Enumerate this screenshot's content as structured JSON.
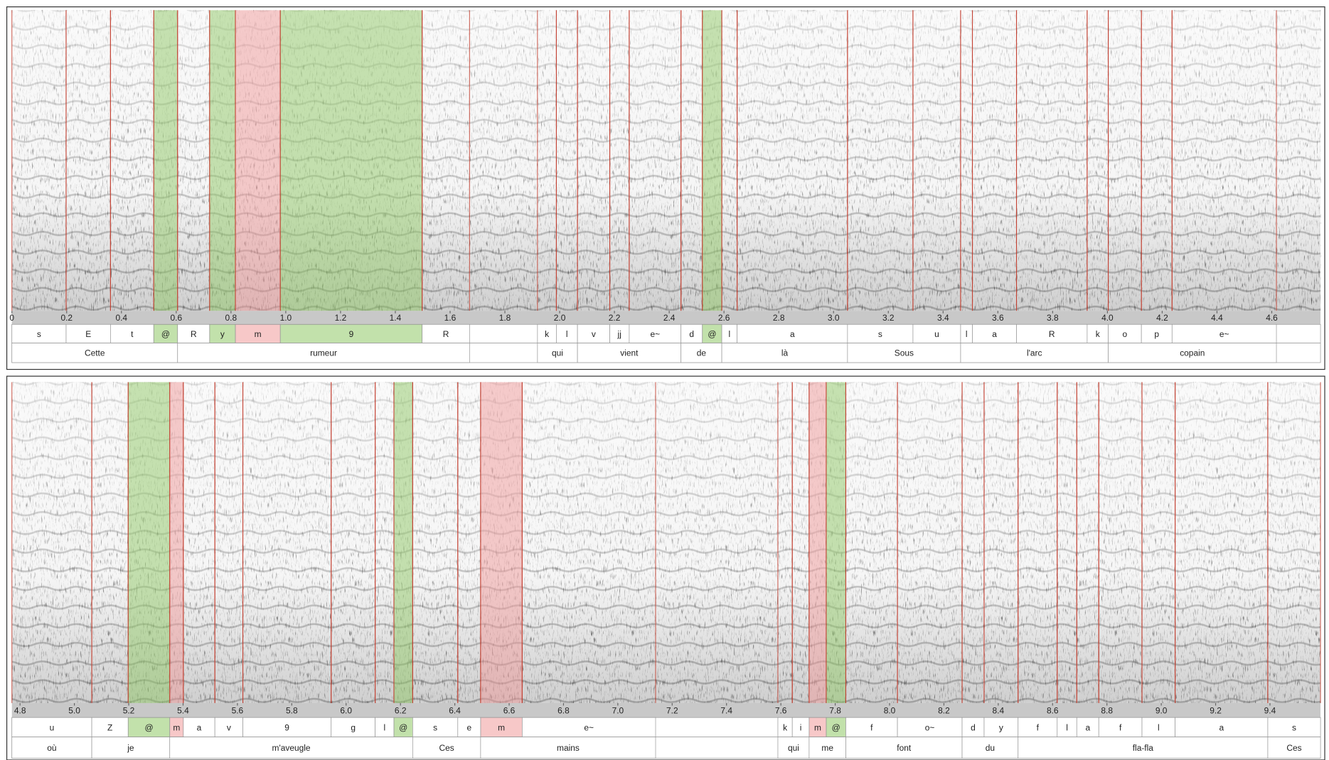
{
  "chart_data": [
    {
      "type": "spectrogram",
      "xlim": [
        0,
        4.778
      ],
      "xticks": [
        0,
        0.2,
        0.4,
        0.6,
        0.8,
        {
          "value": 1,
          "label": "1.0"
        },
        1.2,
        1.4,
        1.6,
        1.8,
        {
          "value": 2,
          "label": "2.0"
        },
        2.2,
        2.4,
        2.6,
        2.8,
        {
          "value": 3,
          "label": "3.0"
        },
        3.2,
        3.4,
        3.6,
        3.8,
        {
          "value": 4,
          "label": "4.0"
        },
        4.2,
        4.4,
        4.6
      ],
      "tiers": [
        {
          "intervals": [
            {
              "label": "s",
              "start": 0,
              "end": 0.198
            },
            {
              "label": "E",
              "start": 0.198,
              "end": 0.36
            },
            {
              "label": "t",
              "start": 0.36,
              "end": 0.518
            },
            {
              "label": "@",
              "start": 0.518,
              "end": 0.605,
              "color": "#8fc866"
            },
            {
              "label": "R",
              "start": 0.605,
              "end": 0.722
            },
            {
              "label": "y",
              "start": 0.722,
              "end": 0.816,
              "color": "#8fc866"
            },
            {
              "label": "m",
              "start": 0.816,
              "end": 0.98,
              "color": "#f09a9a"
            },
            {
              "label": "9",
              "start": 0.98,
              "end": 1.498,
              "color": "#8fc866"
            },
            {
              "label": "R",
              "start": 1.498,
              "end": 1.671
            },
            {
              "label": "k",
              "start": 1.919,
              "end": 1.988
            },
            {
              "label": "l",
              "start": 1.988,
              "end": 2.065
            },
            {
              "label": "v",
              "start": 2.065,
              "end": 2.183
            },
            {
              "label": "jj",
              "start": 2.183,
              "end": 2.254
            },
            {
              "label": "e~",
              "start": 2.254,
              "end": 2.443
            },
            {
              "label": "d",
              "start": 2.443,
              "end": 2.521
            },
            {
              "label": "@",
              "start": 2.521,
              "end": 2.592,
              "color": "#8fc866"
            },
            {
              "label": "l",
              "start": 2.592,
              "end": 2.648
            },
            {
              "label": "a",
              "start": 2.648,
              "end": 3.051
            },
            {
              "label": "s",
              "start": 3.051,
              "end": 3.29
            },
            {
              "label": "u",
              "start": 3.29,
              "end": 3.464
            },
            {
              "label": "l",
              "start": 3.464,
              "end": 3.507
            },
            {
              "label": "a",
              "start": 3.507,
              "end": 3.668
            },
            {
              "label": "R",
              "start": 3.668,
              "end": 3.926
            },
            {
              "label": "k",
              "start": 3.926,
              "end": 4.003
            },
            {
              "label": "o",
              "start": 4.003,
              "end": 4.124
            },
            {
              "label": "p",
              "start": 4.124,
              "end": 4.236
            },
            {
              "label": "e~",
              "start": 4.236,
              "end": 4.617
            }
          ]
        },
        {
          "intervals": [
            {
              "label": "Cette",
              "start": 0,
              "end": 0.605
            },
            {
              "label": "rumeur",
              "start": 0.605,
              "end": 1.671
            },
            {
              "label": "qui",
              "start": 1.919,
              "end": 2.065
            },
            {
              "label": "vient",
              "start": 2.065,
              "end": 2.443
            },
            {
              "label": "de",
              "start": 2.443,
              "end": 2.592
            },
            {
              "label": "là",
              "start": 2.592,
              "end": 3.051
            },
            {
              "label": "Sous",
              "start": 3.051,
              "end": 3.464
            },
            {
              "label": "l'arc",
              "start": 3.464,
              "end": 4.003
            },
            {
              "label": "copain",
              "start": 4.003,
              "end": 4.617
            }
          ]
        }
      ]
    },
    {
      "type": "spectrogram",
      "xlim": [
        4.77,
        9.586
      ],
      "xticks": [
        4.8,
        {
          "value": 5,
          "label": "5.0"
        },
        5.2,
        5.4,
        5.6,
        5.8,
        {
          "value": 6,
          "label": "6.0"
        },
        6.2,
        6.4,
        6.6,
        6.8,
        {
          "value": 7,
          "label": "7.0"
        },
        7.2,
        7.4,
        7.6,
        7.8,
        {
          "value": 8,
          "label": "8.0"
        },
        8.2,
        8.4,
        8.6,
        8.8,
        {
          "value": 9,
          "label": "9.0"
        },
        9.2,
        9.4
      ],
      "tiers": [
        {
          "intervals": [
            {
              "label": "u",
              "start": 4.77,
              "end": 5.064
            },
            {
              "label": "Z",
              "start": 5.064,
              "end": 5.198
            },
            {
              "label": "@",
              "start": 5.198,
              "end": 5.351,
              "color": "#8fc866"
            },
            {
              "label": "m",
              "start": 5.351,
              "end": 5.401,
              "color": "#f09a9a"
            },
            {
              "label": "a",
              "start": 5.401,
              "end": 5.517
            },
            {
              "label": "v",
              "start": 5.517,
              "end": 5.62
            },
            {
              "label": "9",
              "start": 5.62,
              "end": 5.945
            },
            {
              "label": "g",
              "start": 5.945,
              "end": 6.107
            },
            {
              "label": "l",
              "start": 6.107,
              "end": 6.176
            },
            {
              "label": "@",
              "start": 6.176,
              "end": 6.245,
              "color": "#8fc866"
            },
            {
              "label": "s",
              "start": 6.245,
              "end": 6.411
            },
            {
              "label": "e",
              "start": 6.411,
              "end": 6.495
            },
            {
              "label": "m",
              "start": 6.495,
              "end": 6.648,
              "color": "#f09a9a"
            },
            {
              "label": "e~",
              "start": 6.648,
              "end": 7.139
            },
            {
              "label": "k",
              "start": 7.589,
              "end": 7.642
            },
            {
              "label": "i",
              "start": 7.642,
              "end": 7.704
            },
            {
              "label": "m",
              "start": 7.704,
              "end": 7.767,
              "color": "#f09a9a"
            },
            {
              "label": "@",
              "start": 7.767,
              "end": 7.839,
              "color": "#8fc866"
            },
            {
              "label": "f",
              "start": 7.839,
              "end": 8.029
            },
            {
              "label": "o~",
              "start": 8.029,
              "end": 8.267
            },
            {
              "label": "d",
              "start": 8.267,
              "end": 8.348
            },
            {
              "label": "y",
              "start": 8.348,
              "end": 8.473
            },
            {
              "label": "f",
              "start": 8.473,
              "end": 8.617
            },
            {
              "label": "l",
              "start": 8.617,
              "end": 8.689
            },
            {
              "label": "a",
              "start": 8.689,
              "end": 8.77
            },
            {
              "label": "f",
              "start": 8.77,
              "end": 8.929
            },
            {
              "label": "l",
              "start": 8.929,
              "end": 9.051
            },
            {
              "label": "a",
              "start": 9.051,
              "end": 9.392
            },
            {
              "label": "s",
              "start": 9.392,
              "end": 9.586
            }
          ]
        },
        {
          "intervals": [
            {
              "label": "où",
              "start": 4.77,
              "end": 5.064
            },
            {
              "label": "je",
              "start": 5.064,
              "end": 5.351
            },
            {
              "label": "m'aveugle",
              "start": 5.351,
              "end": 6.245
            },
            {
              "label": "Ces",
              "start": 6.245,
              "end": 6.495
            },
            {
              "label": "mains",
              "start": 6.495,
              "end": 7.139
            },
            {
              "label": "qui",
              "start": 7.589,
              "end": 7.704
            },
            {
              "label": "me",
              "start": 7.704,
              "end": 7.839
            },
            {
              "label": "font",
              "start": 7.839,
              "end": 8.267
            },
            {
              "label": "du",
              "start": 8.267,
              "end": 8.473
            },
            {
              "label": "fla-fla",
              "start": 8.473,
              "end": 9.392
            },
            {
              "label": "Ces",
              "start": 9.392,
              "end": 9.586
            }
          ]
        }
      ]
    }
  ]
}
